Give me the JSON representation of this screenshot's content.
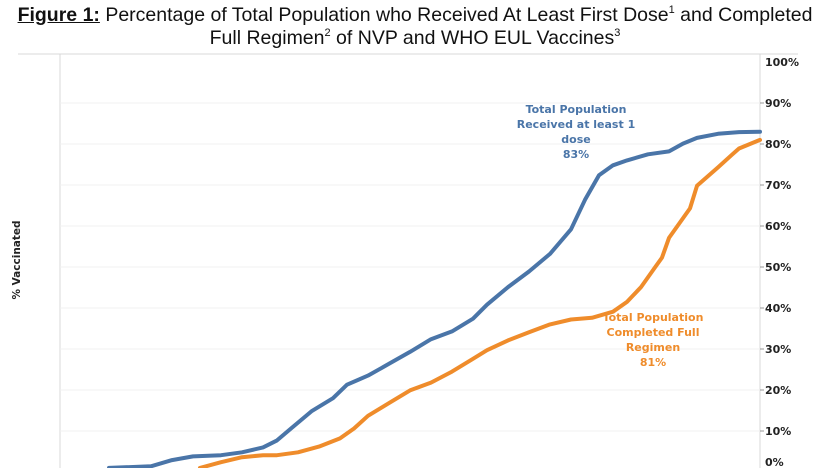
{
  "title": {
    "figure_label": "Figure 1:",
    "line1_text": " Percentage of Total Population who Received At Least First Dose",
    "line1_sup1": "1",
    "line1_after": " and Completed",
    "line2_text": "Full Regimen",
    "line2_sup": "2",
    "line2_after": "  of NVP and WHO EUL Vaccines",
    "line2_sup2": "3"
  },
  "chart_data": {
    "type": "line",
    "title": "Figure 1: Percentage of Total Population who Received At Least First Dose and Completed Full Regimen of NVP and WHO EUL Vaccines",
    "xlabel": "",
    "ylabel": "% Vaccinated",
    "ylim": [
      0,
      100
    ],
    "yaxis_position": "right",
    "yticks": [
      "0%",
      "10%",
      "20%",
      "30%",
      "40%",
      "50%",
      "60%",
      "70%",
      "80%",
      "90%",
      "100%"
    ],
    "ytick_values": [
      0,
      10,
      20,
      30,
      40,
      50,
      60,
      70,
      80,
      90,
      100
    ],
    "grid": true,
    "x_index_range": [
      0,
      100
    ],
    "series": [
      {
        "name": "Total Population Received at least 1 dose",
        "color": "#4a75a8",
        "x": [
          7,
          13,
          16,
          19,
          23,
          26,
          29,
          31,
          33,
          36,
          39,
          41,
          44,
          47,
          50,
          53,
          56,
          59,
          61,
          64,
          67,
          70,
          73,
          75,
          77,
          79,
          81,
          84,
          87,
          89,
          91,
          94,
          97,
          100
        ],
        "values": [
          1,
          1.4,
          2.9,
          3.8,
          4.1,
          4.8,
          6.0,
          7.7,
          10.6,
          14.9,
          18.0,
          21.3,
          23.5,
          26.4,
          29.3,
          32.4,
          34.3,
          37.4,
          40.8,
          45.1,
          48.9,
          53.2,
          59.2,
          66.4,
          72.4,
          74.8,
          76.0,
          77.5,
          78.2,
          80.1,
          81.5,
          82.5,
          82.9,
          83.0
        ]
      },
      {
        "name": "Total Population Completed Full Regimen",
        "color": "#ef8c2b",
        "x": [
          20,
          23,
          26,
          29,
          31,
          34,
          37,
          40,
          42,
          44,
          47,
          50,
          53,
          56,
          59,
          61,
          64,
          67,
          70,
          73,
          76,
          79,
          81,
          83,
          85,
          86,
          87,
          90,
          91,
          94,
          96,
          97,
          100
        ],
        "values": [
          1,
          2.4,
          3.6,
          4.1,
          4.1,
          4.8,
          6.2,
          8.2,
          10.6,
          13.7,
          16.8,
          19.9,
          21.8,
          24.5,
          27.6,
          29.7,
          32.1,
          34.1,
          36.0,
          37.2,
          37.6,
          39.1,
          41.5,
          45.1,
          49.9,
          52.3,
          57.1,
          64.3,
          69.8,
          74.3,
          77.4,
          78.9,
          81.0
        ]
      }
    ],
    "annotations": [
      {
        "series": "Total Population Received at least 1 dose",
        "lines": [
          "Total Population",
          "Received at least 1",
          "dose",
          "83%"
        ],
        "color": "#4a75a8"
      },
      {
        "series": "Total Population Completed Full Regimen",
        "lines": [
          "Total Population",
          "Completed Full",
          "Regimen",
          "81%"
        ],
        "color": "#ef8c2b"
      }
    ]
  }
}
